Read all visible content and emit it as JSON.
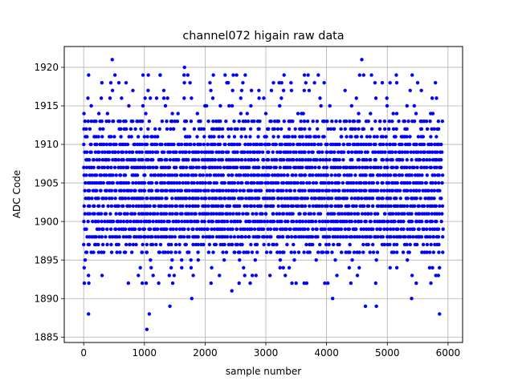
{
  "chart_data": {
    "type": "scatter",
    "title": "channel072 higain raw data",
    "xlabel": "sample number",
    "ylabel": "ADC Code",
    "xlim": [
      -320,
      6240
    ],
    "ylim": [
      1884.3,
      1922.7
    ],
    "xticks": [
      0,
      1000,
      2000,
      3000,
      4000,
      5000,
      6000
    ],
    "yticks": [
      1885,
      1890,
      1895,
      1900,
      1905,
      1910,
      1915,
      1920
    ],
    "grid": true,
    "marker_color": "#0000ff",
    "n_samples": 5920,
    "band": {
      "dense_levels": [
        1898,
        1899,
        1900,
        1901,
        1902,
        1903,
        1904,
        1905,
        1906,
        1907,
        1908,
        1909,
        1910
      ],
      "sparse_levels": [
        1896,
        1897,
        1911,
        1912,
        1913
      ],
      "rare_levels": [
        1892,
        1893,
        1894,
        1895,
        1914,
        1915,
        1916,
        1917,
        1918,
        1919
      ]
    },
    "outliers": [
      {
        "x": 80,
        "y": 1888
      },
      {
        "x": 470,
        "y": 1921
      },
      {
        "x": 300,
        "y": 1918
      },
      {
        "x": 580,
        "y": 1918
      },
      {
        "x": 1040,
        "y": 1886
      },
      {
        "x": 1080,
        "y": 1888
      },
      {
        "x": 1260,
        "y": 1919
      },
      {
        "x": 1420,
        "y": 1889
      },
      {
        "x": 1660,
        "y": 1920
      },
      {
        "x": 1780,
        "y": 1890
      },
      {
        "x": 2440,
        "y": 1891
      },
      {
        "x": 3260,
        "y": 1918
      },
      {
        "x": 3960,
        "y": 1918
      },
      {
        "x": 4100,
        "y": 1890
      },
      {
        "x": 4580,
        "y": 1921
      },
      {
        "x": 4640,
        "y": 1889
      },
      {
        "x": 4820,
        "y": 1889
      },
      {
        "x": 5400,
        "y": 1890
      },
      {
        "x": 5860,
        "y": 1888
      }
    ]
  }
}
